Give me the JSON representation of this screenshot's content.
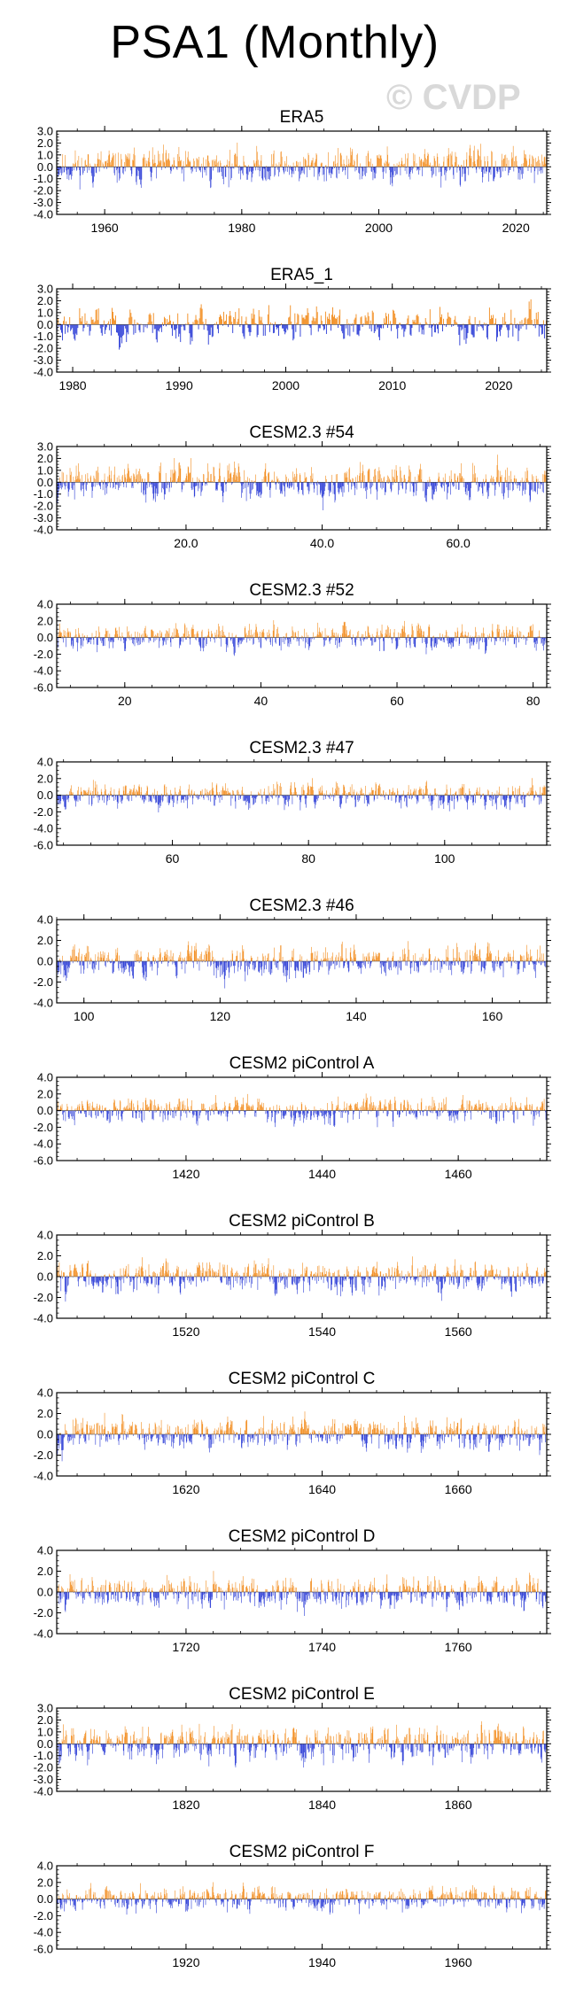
{
  "figure": {
    "title": "PSA1 (Monthly)",
    "watermark": "© CVDP"
  },
  "colors": {
    "positive": "#f28c1e",
    "negative": "#2a3bd6",
    "axis": "#000000"
  },
  "chart_data": [
    {
      "type": "bar",
      "title": "ERA5",
      "xlim": [
        1953,
        2024.5
      ],
      "ylim": [
        -4,
        3
      ],
      "yticks": [
        {
          "v": 3,
          "label": "3.0"
        },
        {
          "v": 2,
          "label": "2.0"
        },
        {
          "v": 1,
          "label": "1.0"
        },
        {
          "v": 0,
          "label": "0.0"
        },
        {
          "v": -1,
          "label": "-1.0"
        },
        {
          "v": -2,
          "label": "-2.0"
        },
        {
          "v": -3,
          "label": "-3.0"
        },
        {
          "v": -4,
          "label": "-4.0"
        }
      ],
      "xticks": [
        {
          "v": 1960,
          "label": "1960"
        },
        {
          "v": 1980,
          "label": "1980"
        },
        {
          "v": 2000,
          "label": "2000"
        },
        {
          "v": 2020,
          "label": "2020"
        }
      ],
      "n_months": 856,
      "amp_pos": 2.6,
      "amp_neg": 3.3,
      "seed": 11
    },
    {
      "type": "bar",
      "title": "ERA5_1",
      "xlim": [
        1978.5,
        2024.5
      ],
      "ylim": [
        -4,
        3
      ],
      "yticks": [
        {
          "v": 3,
          "label": "3.0"
        },
        {
          "v": 2,
          "label": "2.0"
        },
        {
          "v": 1,
          "label": "1.0"
        },
        {
          "v": 0,
          "label": "0.0"
        },
        {
          "v": -1,
          "label": "-1.0"
        },
        {
          "v": -2,
          "label": "-2.0"
        },
        {
          "v": -3,
          "label": "-3.0"
        },
        {
          "v": -4,
          "label": "-4.0"
        }
      ],
      "xticks": [
        {
          "v": 1980,
          "label": "1980"
        },
        {
          "v": 1990,
          "label": "1990"
        },
        {
          "v": 2000,
          "label": "2000"
        },
        {
          "v": 2010,
          "label": "2010"
        },
        {
          "v": 2020,
          "label": "2020"
        }
      ],
      "n_months": 544,
      "amp_pos": 2.5,
      "amp_neg": 3.0,
      "seed": 23
    },
    {
      "type": "bar",
      "title": "CESM2.3 #54",
      "xlim": [
        1,
        73
      ],
      "ylim": [
        -4,
        3
      ],
      "yticks": [
        {
          "v": 3,
          "label": "3.0"
        },
        {
          "v": 2,
          "label": "2.0"
        },
        {
          "v": 1,
          "label": "1.0"
        },
        {
          "v": 0,
          "label": "0.0"
        },
        {
          "v": -1,
          "label": "-1.0"
        },
        {
          "v": -2,
          "label": "-2.0"
        },
        {
          "v": -3,
          "label": "-3.0"
        },
        {
          "v": -4,
          "label": "-4.0"
        }
      ],
      "xticks": [
        {
          "v": 20,
          "label": "20.0"
        },
        {
          "v": 40,
          "label": "40.0"
        },
        {
          "v": 60,
          "label": "60.0"
        }
      ],
      "n_months": 864,
      "amp_pos": 2.8,
      "amp_neg": 3.2,
      "seed": 37
    },
    {
      "type": "bar",
      "title": "CESM2.3 #52",
      "xlim": [
        10,
        82
      ],
      "ylim": [
        -6,
        4
      ],
      "yticks": [
        {
          "v": 4,
          "label": "4.0"
        },
        {
          "v": 2,
          "label": "2.0"
        },
        {
          "v": 0,
          "label": "0.0"
        },
        {
          "v": -2,
          "label": "-2.0"
        },
        {
          "v": -4,
          "label": "-4.0"
        },
        {
          "v": -6,
          "label": "-6.0"
        }
      ],
      "xticks": [
        {
          "v": 20,
          "label": "20"
        },
        {
          "v": 40,
          "label": "40"
        },
        {
          "v": 60,
          "label": "60"
        },
        {
          "v": 80,
          "label": "80"
        }
      ],
      "n_months": 864,
      "amp_pos": 2.6,
      "amp_neg": 3.4,
      "seed": 41
    },
    {
      "type": "bar",
      "title": "CESM2.3 #47",
      "xlim": [
        43,
        115
      ],
      "ylim": [
        -6,
        4
      ],
      "yticks": [
        {
          "v": 4,
          "label": "4.0"
        },
        {
          "v": 2,
          "label": "2.0"
        },
        {
          "v": 0,
          "label": "0.0"
        },
        {
          "v": -2,
          "label": "-2.0"
        },
        {
          "v": -4,
          "label": "-4.0"
        },
        {
          "v": -6,
          "label": "-6.0"
        }
      ],
      "xticks": [
        {
          "v": 60,
          "label": "60"
        },
        {
          "v": 80,
          "label": "80"
        },
        {
          "v": 100,
          "label": "100"
        }
      ],
      "n_months": 864,
      "amp_pos": 3.4,
      "amp_neg": 4.2,
      "seed": 53
    },
    {
      "type": "bar",
      "title": "CESM2.3 #46",
      "xlim": [
        96,
        168
      ],
      "ylim": [
        -4,
        4
      ],
      "yticks": [
        {
          "v": 4,
          "label": "4.0"
        },
        {
          "v": 2,
          "label": "2.0"
        },
        {
          "v": 0,
          "label": "0.0"
        },
        {
          "v": -2,
          "label": "-2.0"
        },
        {
          "v": -4,
          "label": "-4.0"
        }
      ],
      "xticks": [
        {
          "v": 100,
          "label": "100"
        },
        {
          "v": 120,
          "label": "120"
        },
        {
          "v": 140,
          "label": "140"
        },
        {
          "v": 160,
          "label": "160"
        }
      ],
      "n_months": 864,
      "amp_pos": 3.3,
      "amp_neg": 3.1,
      "seed": 67
    },
    {
      "type": "bar",
      "title": "CESM2 piControl A",
      "xlim": [
        1401,
        1473
      ],
      "ylim": [
        -6,
        4
      ],
      "yticks": [
        {
          "v": 4,
          "label": "4.0"
        },
        {
          "v": 2,
          "label": "2.0"
        },
        {
          "v": 0,
          "label": "0.0"
        },
        {
          "v": -2,
          "label": "-2.0"
        },
        {
          "v": -4,
          "label": "-4.0"
        },
        {
          "v": -6,
          "label": "-6.0"
        }
      ],
      "xticks": [
        {
          "v": 1420,
          "label": "1420"
        },
        {
          "v": 1440,
          "label": "1440"
        },
        {
          "v": 1460,
          "label": "1460"
        }
      ],
      "n_months": 864,
      "amp_pos": 3.0,
      "amp_neg": 3.3,
      "seed": 71
    },
    {
      "type": "bar",
      "title": "CESM2 piControl B",
      "xlim": [
        1501,
        1573
      ],
      "ylim": [
        -4,
        4
      ],
      "yticks": [
        {
          "v": 4,
          "label": "4.0"
        },
        {
          "v": 2,
          "label": "2.0"
        },
        {
          "v": 0,
          "label": "0.0"
        },
        {
          "v": -2,
          "label": "-2.0"
        },
        {
          "v": -4,
          "label": "-4.0"
        }
      ],
      "xticks": [
        {
          "v": 1520,
          "label": "1520"
        },
        {
          "v": 1540,
          "label": "1540"
        },
        {
          "v": 1560,
          "label": "1560"
        }
      ],
      "n_months": 864,
      "amp_pos": 3.1,
      "amp_neg": 2.9,
      "seed": 83
    },
    {
      "type": "bar",
      "title": "CESM2 piControl C",
      "xlim": [
        1601,
        1673
      ],
      "ylim": [
        -4,
        4
      ],
      "yticks": [
        {
          "v": 4,
          "label": "4.0"
        },
        {
          "v": 2,
          "label": "2.0"
        },
        {
          "v": 0,
          "label": "0.0"
        },
        {
          "v": -2,
          "label": "-2.0"
        },
        {
          "v": -4,
          "label": "-4.0"
        }
      ],
      "xticks": [
        {
          "v": 1620,
          "label": "1620"
        },
        {
          "v": 1640,
          "label": "1640"
        },
        {
          "v": 1660,
          "label": "1660"
        }
      ],
      "n_months": 864,
      "amp_pos": 3.2,
      "amp_neg": 3.0,
      "seed": 97
    },
    {
      "type": "bar",
      "title": "CESM2 piControl D",
      "xlim": [
        1701,
        1773
      ],
      "ylim": [
        -4,
        4
      ],
      "yticks": [
        {
          "v": 4,
          "label": "4.0"
        },
        {
          "v": 2,
          "label": "2.0"
        },
        {
          "v": 0,
          "label": "0.0"
        },
        {
          "v": -2,
          "label": "-2.0"
        },
        {
          "v": -4,
          "label": "-4.0"
        }
      ],
      "xticks": [
        {
          "v": 1720,
          "label": "1720"
        },
        {
          "v": 1740,
          "label": "1740"
        },
        {
          "v": 1760,
          "label": "1760"
        }
      ],
      "n_months": 864,
      "amp_pos": 2.8,
      "amp_neg": 3.3,
      "seed": 101
    },
    {
      "type": "bar",
      "title": "CESM2 piControl E",
      "xlim": [
        1801,
        1873
      ],
      "ylim": [
        -4,
        3
      ],
      "yticks": [
        {
          "v": 3,
          "label": "3.0"
        },
        {
          "v": 2,
          "label": "2.0"
        },
        {
          "v": 1,
          "label": "1.0"
        },
        {
          "v": 0,
          "label": "0.0"
        },
        {
          "v": -1,
          "label": "-1.0"
        },
        {
          "v": -2,
          "label": "-2.0"
        },
        {
          "v": -3,
          "label": "-3.0"
        },
        {
          "v": -4,
          "label": "-4.0"
        }
      ],
      "xticks": [
        {
          "v": 1820,
          "label": "1820"
        },
        {
          "v": 1840,
          "label": "1840"
        },
        {
          "v": 1860,
          "label": "1860"
        }
      ],
      "n_months": 864,
      "amp_pos": 2.6,
      "amp_neg": 3.1,
      "seed": 113
    },
    {
      "type": "bar",
      "title": "CESM2 piControl F",
      "xlim": [
        1901,
        1973
      ],
      "ylim": [
        -6,
        4
      ],
      "yticks": [
        {
          "v": 4,
          "label": "4.0"
        },
        {
          "v": 2,
          "label": "2.0"
        },
        {
          "v": 0,
          "label": "0.0"
        },
        {
          "v": -2,
          "label": "-2.0"
        },
        {
          "v": -4,
          "label": "-4.0"
        },
        {
          "v": -6,
          "label": "-6.0"
        }
      ],
      "xticks": [
        {
          "v": 1920,
          "label": "1920"
        },
        {
          "v": 1940,
          "label": "1940"
        },
        {
          "v": 1960,
          "label": "1960"
        }
      ],
      "n_months": 864,
      "amp_pos": 2.9,
      "amp_neg": 3.3,
      "seed": 127
    }
  ]
}
